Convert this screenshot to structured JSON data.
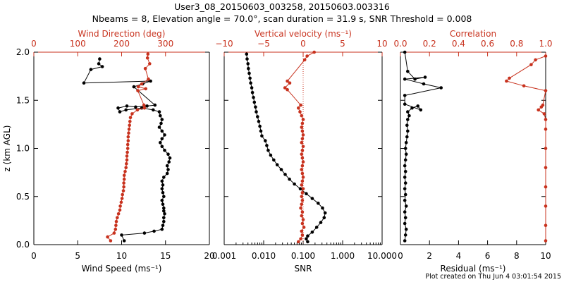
{
  "title_line1": "User3_08_20150603_003258, 20150603.003316",
  "title_line2": "Nbeams = 8, Elevation angle = 70.0°, scan duration = 31.9 s, SNR Threshold = 0.008",
  "footer": "Plot created on Thu Jun  4 03:01:54 2015",
  "colors": {
    "primary": "#000000",
    "secondary": "#c8321e"
  },
  "chart_data": [
    {
      "type": "line",
      "panel": "wind",
      "title": "Wind Direction (deg)",
      "xlabel": "Wind Speed (ms⁻¹)",
      "ylabel": "z (km AGL)",
      "xlim": [
        0,
        20
      ],
      "xlim_top": [
        0,
        400
      ],
      "ylim": [
        0,
        2.0
      ],
      "x_ticks": [
        "0",
        "5",
        "10",
        "15",
        "20"
      ],
      "top_ticks": [
        "0",
        "100",
        "200",
        "300"
      ],
      "y_ticks": [
        "0.0",
        "0.5",
        "1.0",
        "1.5",
        "2.0"
      ],
      "series": [
        {
          "name": "Wind Speed",
          "color": "#000000",
          "axis": "bottom",
          "points": [
            [
              10.3,
              0.04
            ],
            [
              10.0,
              0.1
            ],
            [
              12.6,
              0.12
            ],
            [
              13.7,
              0.14
            ],
            [
              14.6,
              0.16
            ],
            [
              14.7,
              0.2
            ],
            [
              14.8,
              0.24
            ],
            [
              14.8,
              0.28
            ],
            [
              14.9,
              0.32
            ],
            [
              14.8,
              0.35
            ],
            [
              14.8,
              0.38
            ],
            [
              14.7,
              0.42
            ],
            [
              14.6,
              0.46
            ],
            [
              14.8,
              0.5
            ],
            [
              14.7,
              0.54
            ],
            [
              14.6,
              0.58
            ],
            [
              14.7,
              0.62
            ],
            [
              14.6,
              0.66
            ],
            [
              14.8,
              0.7
            ],
            [
              15.2,
              0.74
            ],
            [
              15.3,
              0.78
            ],
            [
              15.2,
              0.82
            ],
            [
              15.4,
              0.86
            ],
            [
              15.5,
              0.9
            ],
            [
              15.3,
              0.94
            ],
            [
              14.9,
              0.98
            ],
            [
              14.6,
              1.02
            ],
            [
              14.4,
              1.06
            ],
            [
              14.6,
              1.1
            ],
            [
              14.9,
              1.14
            ],
            [
              14.6,
              1.18
            ],
            [
              14.3,
              1.22
            ],
            [
              14.5,
              1.26
            ],
            [
              14.6,
              1.3
            ],
            [
              14.4,
              1.34
            ],
            [
              14.3,
              1.38
            ],
            [
              13.6,
              1.4
            ],
            [
              12.3,
              1.42
            ],
            [
              10.5,
              1.4
            ],
            [
              9.8,
              1.38
            ],
            [
              9.6,
              1.42
            ],
            [
              10.6,
              1.44
            ],
            [
              11.6,
              1.43
            ],
            [
              12.9,
              1.44
            ],
            [
              13.8,
              1.45
            ],
            [
              11.4,
              1.64
            ],
            [
              12.4,
              1.67
            ],
            [
              13.3,
              1.7
            ],
            [
              5.7,
              1.68
            ],
            [
              6.5,
              1.82
            ],
            [
              7.8,
              1.85
            ],
            [
              7.4,
              1.88
            ],
            [
              7.5,
              1.93
            ]
          ]
        },
        {
          "name": "Wind Direction",
          "color": "#c8321e",
          "axis": "top",
          "points": [
            [
              175,
              0.04
            ],
            [
              168,
              0.08
            ],
            [
              183,
              0.12
            ],
            [
              186,
              0.16
            ],
            [
              187,
              0.2
            ],
            [
              188,
              0.24
            ],
            [
              190,
              0.28
            ],
            [
              193,
              0.32
            ],
            [
              196,
              0.36
            ],
            [
              197,
              0.4
            ],
            [
              199,
              0.44
            ],
            [
              201,
              0.48
            ],
            [
              202,
              0.52
            ],
            [
              204,
              0.56
            ],
            [
              205,
              0.6
            ],
            [
              205,
              0.64
            ],
            [
              206,
              0.68
            ],
            [
              206,
              0.72
            ],
            [
              208,
              0.76
            ],
            [
              210,
              0.8
            ],
            [
              211,
              0.84
            ],
            [
              212,
              0.88
            ],
            [
              212,
              0.92
            ],
            [
              213,
              0.96
            ],
            [
              214,
              1.0
            ],
            [
              214,
              1.04
            ],
            [
              215,
              1.08
            ],
            [
              215,
              1.12
            ],
            [
              216,
              1.16
            ],
            [
              217,
              1.2
            ],
            [
              218,
              1.24
            ],
            [
              219,
              1.28
            ],
            [
              220,
              1.32
            ],
            [
              224,
              1.36
            ],
            [
              236,
              1.4
            ],
            [
              252,
              1.42
            ],
            [
              251,
              1.45
            ],
            [
              237,
              1.6
            ],
            [
              255,
              1.62
            ],
            [
              238,
              1.64
            ],
            [
              246,
              1.67
            ],
            [
              261,
              1.72
            ],
            [
              254,
              1.83
            ],
            [
              264,
              1.88
            ],
            [
              259,
              1.94
            ],
            [
              260,
              1.98
            ]
          ]
        }
      ]
    },
    {
      "type": "line",
      "panel": "vertical",
      "title": "Vertical velocity (ms⁻¹)",
      "xlabel": "SNR",
      "xscale": "log",
      "xlim": [
        0.001,
        10
      ],
      "xlim_top": [
        -10,
        10
      ],
      "ylim": [
        0,
        2.0
      ],
      "x_ticks": [
        "0.001",
        "0.010",
        "0.100",
        "1.000",
        "10.000"
      ],
      "top_ticks": [
        "−10",
        "−5",
        "0",
        "5",
        "10"
      ],
      "series": [
        {
          "name": "SNR",
          "color": "#000000",
          "axis": "bottom",
          "points": [
            [
              0.13,
              0.03
            ],
            [
              0.12,
              0.06
            ],
            [
              0.13,
              0.09
            ],
            [
              0.17,
              0.13
            ],
            [
              0.22,
              0.18
            ],
            [
              0.28,
              0.23
            ],
            [
              0.34,
              0.28
            ],
            [
              0.36,
              0.33
            ],
            [
              0.31,
              0.38
            ],
            [
              0.24,
              0.43
            ],
            [
              0.17,
              0.48
            ],
            [
              0.12,
              0.53
            ],
            [
              0.085,
              0.58
            ],
            [
              0.06,
              0.63
            ],
            [
              0.045,
              0.68
            ],
            [
              0.035,
              0.73
            ],
            [
              0.028,
              0.78
            ],
            [
              0.022,
              0.83
            ],
            [
              0.018,
              0.88
            ],
            [
              0.015,
              0.93
            ],
            [
              0.013,
              0.98
            ],
            [
              0.012,
              1.03
            ],
            [
              0.011,
              1.08
            ],
            [
              0.009,
              1.13
            ],
            [
              0.0085,
              1.18
            ],
            [
              0.008,
              1.23
            ],
            [
              0.0075,
              1.28
            ],
            [
              0.007,
              1.33
            ],
            [
              0.0065,
              1.38
            ],
            [
              0.0062,
              1.43
            ],
            [
              0.0058,
              1.48
            ],
            [
              0.0055,
              1.53
            ],
            [
              0.0052,
              1.58
            ],
            [
              0.005,
              1.63
            ],
            [
              0.0047,
              1.68
            ],
            [
              0.0045,
              1.73
            ],
            [
              0.0043,
              1.78
            ],
            [
              0.0041,
              1.83
            ],
            [
              0.004,
              1.88
            ],
            [
              0.0038,
              1.93
            ],
            [
              0.0037,
              1.98
            ]
          ]
        },
        {
          "name": "Vertical velocity",
          "color": "#c8321e",
          "axis": "top",
          "points": [
            [
              -0.6,
              0.03
            ],
            [
              -0.3,
              0.06
            ],
            [
              -0.1,
              0.1
            ],
            [
              -0.2,
              0.14
            ],
            [
              0.1,
              0.18
            ],
            [
              -0.1,
              0.22
            ],
            [
              0.0,
              0.26
            ],
            [
              -0.2,
              0.3
            ],
            [
              -0.1,
              0.34
            ],
            [
              -0.3,
              0.38
            ],
            [
              -0.2,
              0.42
            ],
            [
              -0.1,
              0.46
            ],
            [
              -0.2,
              0.5
            ],
            [
              -0.1,
              0.54
            ],
            [
              0.0,
              0.58
            ],
            [
              -0.2,
              0.62
            ],
            [
              -0.1,
              0.66
            ],
            [
              0.0,
              0.7
            ],
            [
              -0.1,
              0.74
            ],
            [
              -0.2,
              0.78
            ],
            [
              -0.1,
              0.82
            ],
            [
              0.0,
              0.86
            ],
            [
              -0.1,
              0.9
            ],
            [
              -0.2,
              0.94
            ],
            [
              -0.1,
              0.98
            ],
            [
              0.0,
              1.02
            ],
            [
              -0.2,
              1.06
            ],
            [
              -0.1,
              1.1
            ],
            [
              0.0,
              1.14
            ],
            [
              -0.1,
              1.18
            ],
            [
              -0.2,
              1.22
            ],
            [
              -0.1,
              1.26
            ],
            [
              0.0,
              1.3
            ],
            [
              -0.2,
              1.34
            ],
            [
              -0.4,
              1.38
            ],
            [
              -0.6,
              1.42
            ],
            [
              -0.3,
              1.45
            ],
            [
              -2.0,
              1.61
            ],
            [
              -2.3,
              1.63
            ],
            [
              -1.7,
              1.68
            ],
            [
              -2.0,
              1.7
            ],
            [
              0.2,
              1.92
            ],
            [
              0.5,
              1.96
            ],
            [
              1.4,
              2.0
            ]
          ]
        }
      ]
    },
    {
      "type": "line",
      "panel": "correlation",
      "title": "Correlation",
      "xlabel": "Residual (ms⁻¹)",
      "xlim": [
        0,
        10
      ],
      "xlim_top": [
        0,
        1.0
      ],
      "ylim": [
        0,
        2.0
      ],
      "x_ticks": [
        "0",
        "2",
        "4",
        "6",
        "8",
        "10"
      ],
      "top_ticks": [
        "0.0",
        "0.2",
        "0.4",
        "0.6",
        "0.8",
        "1.0"
      ],
      "series": [
        {
          "name": "Residual",
          "color": "#000000",
          "axis": "bottom",
          "points": [
            [
              0.3,
              0.04
            ],
            [
              0.35,
              0.1
            ],
            [
              0.4,
              0.16
            ],
            [
              0.3,
              0.22
            ],
            [
              0.35,
              0.28
            ],
            [
              0.3,
              0.34
            ],
            [
              0.4,
              0.4
            ],
            [
              0.3,
              0.46
            ],
            [
              0.35,
              0.52
            ],
            [
              0.3,
              0.58
            ],
            [
              0.35,
              0.64
            ],
            [
              0.3,
              0.7
            ],
            [
              0.35,
              0.76
            ],
            [
              0.3,
              0.82
            ],
            [
              0.35,
              0.88
            ],
            [
              0.4,
              0.94
            ],
            [
              0.35,
              1.0
            ],
            [
              0.4,
              1.06
            ],
            [
              0.45,
              1.12
            ],
            [
              0.5,
              1.18
            ],
            [
              0.45,
              1.24
            ],
            [
              0.5,
              1.3
            ],
            [
              0.6,
              1.34
            ],
            [
              0.5,
              1.38
            ],
            [
              0.8,
              1.42
            ],
            [
              1.2,
              1.44
            ],
            [
              1.4,
              1.4
            ],
            [
              0.3,
              1.46
            ],
            [
              0.3,
              1.55
            ],
            [
              2.8,
              1.63
            ],
            [
              1.6,
              1.67
            ],
            [
              0.3,
              1.72
            ],
            [
              1.7,
              1.74
            ],
            [
              1.0,
              1.72
            ],
            [
              0.5,
              1.8
            ],
            [
              0.3,
              2.0
            ]
          ]
        },
        {
          "name": "Correlation",
          "color": "#c8321e",
          "axis": "top",
          "points": [
            [
              1.0,
              0.04
            ],
            [
              1.0,
              0.2
            ],
            [
              1.0,
              0.4
            ],
            [
              1.0,
              0.6
            ],
            [
              1.0,
              0.8
            ],
            [
              1.0,
              1.0
            ],
            [
              1.0,
              1.2
            ],
            [
              1.0,
              1.3
            ],
            [
              0.99,
              1.36
            ],
            [
              0.95,
              1.4
            ],
            [
              0.97,
              1.43
            ],
            [
              0.98,
              1.45
            ],
            [
              1.0,
              1.6
            ],
            [
              0.85,
              1.65
            ],
            [
              0.73,
              1.7
            ],
            [
              0.75,
              1.73
            ],
            [
              0.9,
              1.87
            ],
            [
              0.93,
              1.92
            ],
            [
              1.0,
              1.96
            ]
          ]
        }
      ]
    }
  ]
}
